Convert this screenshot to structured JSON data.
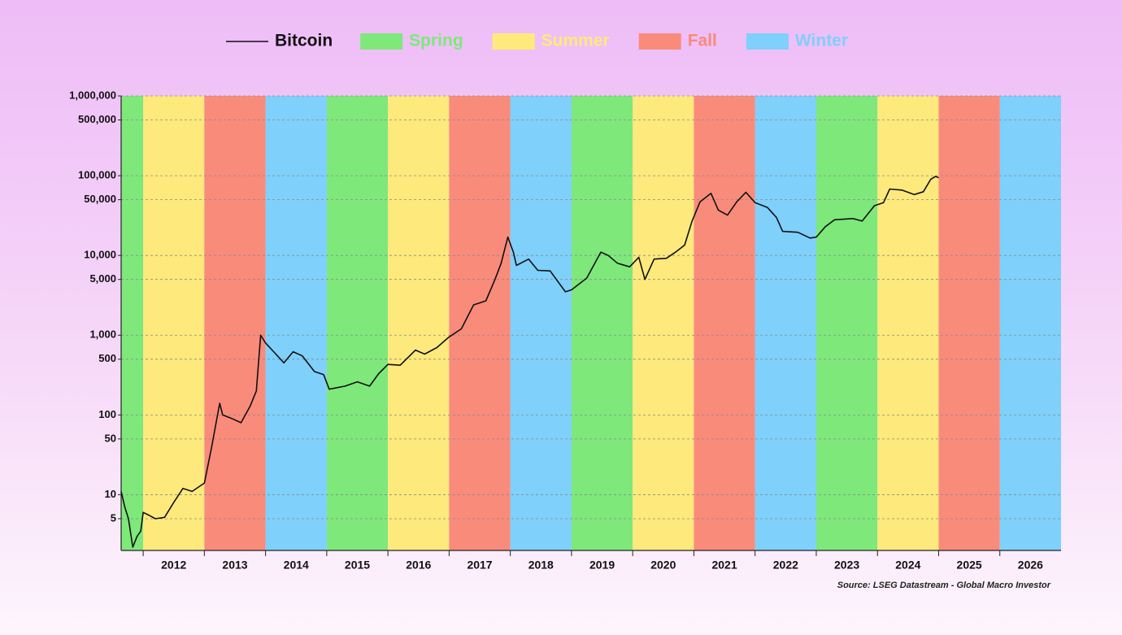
{
  "chart_data": {
    "type": "line",
    "log_scale": true,
    "grid": true,
    "legend": "top",
    "source": "Source: LSEG Datastream - Global Macro Investor",
    "xlim": [
      2011.64,
      2027
    ],
    "xticks": [
      2012,
      2013,
      2014,
      2015,
      2016,
      2017,
      2018,
      2019,
      2020,
      2021,
      2022,
      2023,
      2024,
      2025,
      2026
    ],
    "ylim": [
      2,
      1000000
    ],
    "yticks": [
      5,
      10,
      50,
      100,
      500,
      {
        "value": 1000,
        "label": "1,000"
      },
      {
        "value": 5000,
        "label": "5,000"
      },
      {
        "value": 10000,
        "label": "10,000"
      },
      {
        "value": 50000,
        "label": "50,000"
      },
      {
        "value": 100000,
        "label": "100,000"
      },
      {
        "value": 500000,
        "label": "500,000"
      },
      {
        "value": 1000000,
        "label": "1,000,000"
      }
    ],
    "seasons": [
      {
        "name": "Spring",
        "color": "#7ee87b",
        "spans": [
          [
            2011.64,
            2012
          ],
          [
            2015,
            2016
          ],
          [
            2019,
            2020
          ],
          [
            2023,
            2024
          ]
        ]
      },
      {
        "name": "Summer",
        "color": "#fde97c",
        "spans": [
          [
            2012,
            2013
          ],
          [
            2016,
            2017
          ],
          [
            2020,
            2021
          ],
          [
            2024,
            2025
          ]
        ]
      },
      {
        "name": "Fall",
        "color": "#f98b7b",
        "spans": [
          [
            2013,
            2014
          ],
          [
            2017,
            2018
          ],
          [
            2021,
            2022
          ],
          [
            2025,
            2026
          ]
        ]
      },
      {
        "name": "Winter",
        "color": "#7fd0fa",
        "spans": [
          [
            2014,
            2015
          ],
          [
            2018,
            2019
          ],
          [
            2022,
            2023
          ],
          [
            2026,
            2027
          ]
        ]
      }
    ],
    "series": [
      {
        "name": "Bitcoin",
        "color": "#111111",
        "x": [
          2011.64,
          2011.7,
          2011.76,
          2011.83,
          2011.9,
          2011.96,
          2012.0,
          2012.1,
          2012.2,
          2012.35,
          2012.5,
          2012.65,
          2012.8,
          2013.0,
          2013.12,
          2013.25,
          2013.3,
          2013.45,
          2013.6,
          2013.75,
          2013.85,
          2013.92,
          2014.0,
          2014.15,
          2014.3,
          2014.45,
          2014.6,
          2014.8,
          2014.95,
          2015.04,
          2015.3,
          2015.5,
          2015.7,
          2015.85,
          2016.0,
          2016.2,
          2016.45,
          2016.6,
          2016.8,
          2017.0,
          2017.2,
          2017.4,
          2017.6,
          2017.75,
          2017.85,
          2017.96,
          2018.05,
          2018.1,
          2018.3,
          2018.45,
          2018.65,
          2018.9,
          2019.0,
          2019.25,
          2019.48,
          2019.6,
          2019.75,
          2019.95,
          2020.1,
          2020.2,
          2020.35,
          2020.55,
          2020.7,
          2020.85,
          2020.97,
          2021.1,
          2021.28,
          2021.4,
          2021.55,
          2021.7,
          2021.85,
          2022.0,
          2022.2,
          2022.35,
          2022.45,
          2022.7,
          2022.9,
          2023.0,
          2023.15,
          2023.3,
          2023.6,
          2023.75,
          2023.95,
          2024.1,
          2024.2,
          2024.4,
          2024.6,
          2024.75,
          2024.87,
          2024.95,
          2025.0
        ],
        "values": [
          11,
          7,
          5,
          2.2,
          3,
          3.5,
          6,
          5.5,
          5,
          5.2,
          8,
          12,
          11,
          14,
          40,
          140,
          100,
          90,
          80,
          130,
          200,
          1000,
          800,
          600,
          450,
          620,
          550,
          350,
          320,
          210,
          230,
          260,
          230,
          330,
          430,
          420,
          650,
          580,
          700,
          950,
          1200,
          2400,
          2700,
          5000,
          8000,
          17000,
          11000,
          7500,
          9000,
          6500,
          6400,
          3500,
          3700,
          5200,
          11000,
          10000,
          8000,
          7200,
          9500,
          5000,
          9000,
          9200,
          11000,
          13500,
          27000,
          47000,
          60000,
          37000,
          32000,
          47000,
          62000,
          46000,
          40000,
          30000,
          20000,
          19500,
          16500,
          17000,
          23000,
          28000,
          29000,
          27000,
          42000,
          46000,
          68000,
          66000,
          58000,
          63000,
          90000,
          98000,
          94000
        ]
      }
    ]
  }
}
